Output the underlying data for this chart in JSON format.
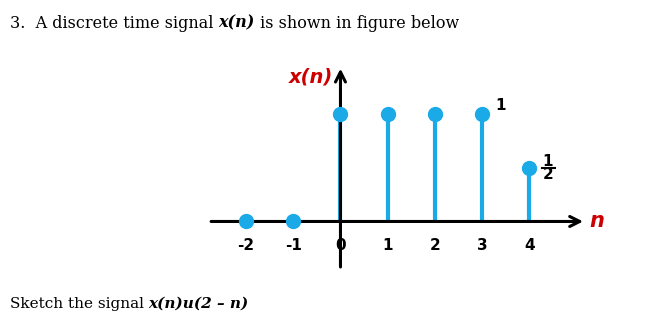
{
  "stems": {
    "n": [
      -2,
      -1,
      0,
      1,
      2,
      3,
      4
    ],
    "values": [
      0,
      0,
      1,
      1,
      1,
      1,
      0.5
    ]
  },
  "dot_only_n": [
    -2,
    -1
  ],
  "stem_color": "#1AAAE8",
  "dot_color": "#1AAAE8",
  "axis_color": "black",
  "ylabel_text": "x(n)",
  "ylabel_color": "#CC0000",
  "xlabel_text": "n",
  "xlabel_color": "#CC0000",
  "xlim": [
    -2.8,
    5.2
  ],
  "ylim": [
    -0.45,
    1.45
  ],
  "tick_labels": [
    -2,
    -1,
    0,
    1,
    2,
    3,
    4
  ],
  "background_color": "#ffffff",
  "fig_title_normal1": "3.  A discrete time signal ",
  "fig_title_bold_italic": "x(n)",
  "fig_title_normal2": " is shown in figure below",
  "bottom_normal": "Sketch the signal ",
  "bottom_bold_italic": "x(n)u(2 – n)"
}
